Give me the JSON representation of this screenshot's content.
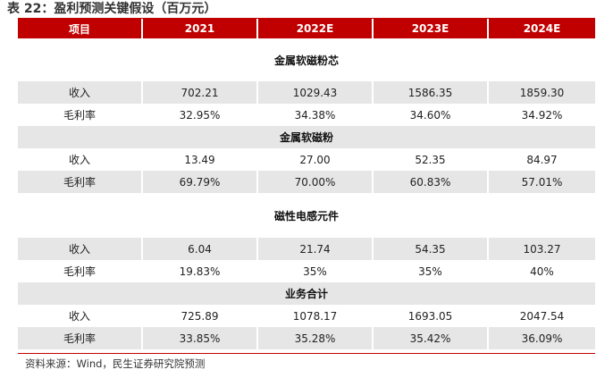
{
  "title": "表 22：盈利预测关键假设（百万元）",
  "header": [
    "项目",
    "2021",
    "2022E",
    "2023E",
    "2024E"
  ],
  "sections": [
    {
      "name": "金属软磁粉芯",
      "rows": [
        {
          "label": "收入",
          "values": [
            "702.21",
            "1029.43",
            "1586.35",
            "1859.30"
          ]
        },
        {
          "label": "毛利率",
          "values": [
            "32.95%",
            "34.38%",
            "34.60%",
            "34.92%"
          ]
        }
      ]
    },
    {
      "name": "金属软磁粉",
      "rows": [
        {
          "label": "收入",
          "values": [
            "13.49",
            "27.00",
            "52.35",
            "84.97"
          ]
        },
        {
          "label": "毛利率",
          "values": [
            "69.79%",
            "70.00%",
            "60.83%",
            "57.01%"
          ]
        }
      ]
    },
    {
      "name": "磁性电感元件",
      "rows": [
        {
          "label": "收入",
          "values": [
            "6.04",
            "21.74",
            "54.35",
            "103.27"
          ]
        },
        {
          "label": "毛利率",
          "values": [
            "19.83%",
            "35%",
            "35%",
            "40%"
          ]
        }
      ]
    },
    {
      "name": "业务合计",
      "rows": [
        {
          "label": "收入",
          "values": [
            "725.89",
            "1078.17",
            "1693.05",
            "2047.54"
          ]
        },
        {
          "label": "毛利率",
          "values": [
            "33.85%",
            "35.28%",
            "35.42%",
            "36.09%"
          ]
        }
      ]
    }
  ],
  "source": "资料来源：Wind，民生证券研究院预测",
  "colors": {
    "accent": "#c00000",
    "row_shade": "#e6e6e6"
  }
}
